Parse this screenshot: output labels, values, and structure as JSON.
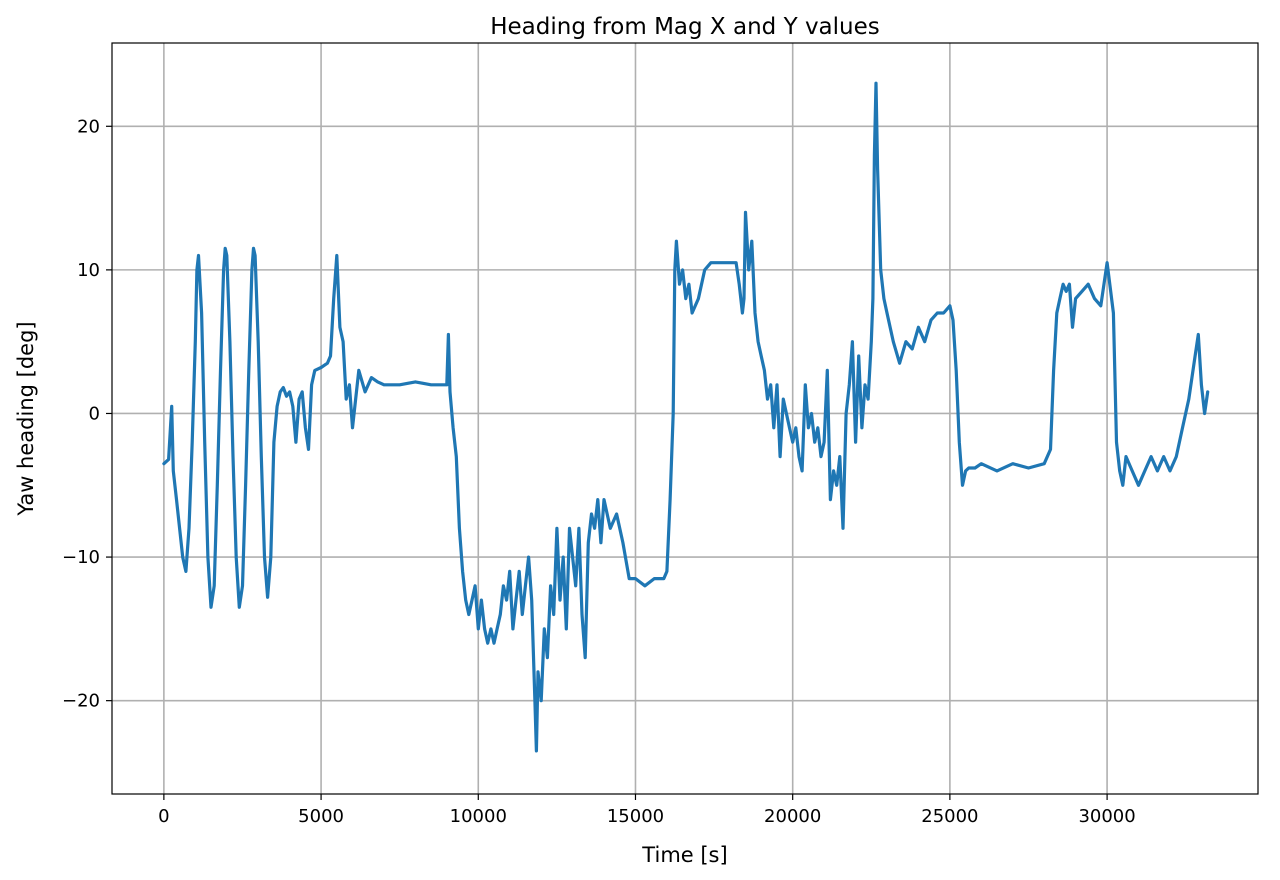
{
  "chart_data": {
    "type": "line",
    "title": "Heading from Mag X and Y values",
    "xlabel": "Time [s]",
    "ylabel": "Yaw heading [deg]",
    "xlim": [
      -1650,
      34800
    ],
    "ylim": [
      -26.5,
      25.8
    ],
    "xticks": [
      0,
      5000,
      10000,
      15000,
      20000,
      25000,
      30000
    ],
    "yticks": [
      -20,
      -10,
      0,
      10,
      20
    ],
    "grid": true,
    "legend": "none",
    "series": [
      {
        "color": "#1f77b4",
        "x": [
          0,
          150,
          250,
          300,
          400,
          500,
          600,
          700,
          800,
          900,
          1000,
          1050,
          1100,
          1200,
          1300,
          1400,
          1500,
          1600,
          1700,
          1800,
          1900,
          1950,
          2000,
          2100,
          2200,
          2300,
          2400,
          2500,
          2600,
          2700,
          2800,
          2850,
          2900,
          3000,
          3100,
          3200,
          3300,
          3400,
          3500,
          3600,
          3700,
          3800,
          3900,
          4000,
          4100,
          4200,
          4300,
          4400,
          4500,
          4600,
          4700,
          4800,
          5000,
          5200,
          5300,
          5400,
          5500,
          5600,
          5700,
          5800,
          5900,
          6000,
          6200,
          6400,
          6600,
          6800,
          7000,
          7500,
          8000,
          8500,
          8800,
          9000,
          9050,
          9100,
          9200,
          9300,
          9400,
          9500,
          9600,
          9700,
          9800,
          9900,
          10000,
          10100,
          10200,
          10300,
          10400,
          10500,
          10600,
          10700,
          10800,
          10900,
          11000,
          11100,
          11200,
          11300,
          11400,
          11500,
          11600,
          11700,
          11800,
          11850,
          11900,
          12000,
          12100,
          12200,
          12300,
          12400,
          12500,
          12600,
          12700,
          12800,
          12900,
          13000,
          13100,
          13200,
          13300,
          13400,
          13500,
          13600,
          13700,
          13800,
          13900,
          14000,
          14200,
          14400,
          14600,
          14800,
          15000,
          15300,
          15600,
          15900,
          16000,
          16100,
          16200,
          16250,
          16300,
          16400,
          16500,
          16600,
          16700,
          16800,
          17000,
          17200,
          17400,
          17600,
          17800,
          18000,
          18200,
          18300,
          18400,
          18450,
          18500,
          18600,
          18700,
          18800,
          18900,
          19000,
          19100,
          19200,
          19300,
          19400,
          19500,
          19600,
          19700,
          19800,
          19900,
          20000,
          20100,
          20200,
          20300,
          20400,
          20500,
          20600,
          20700,
          20800,
          20900,
          21000,
          21100,
          21200,
          21300,
          21400,
          21500,
          21600,
          21700,
          21800,
          21900,
          22000,
          22100,
          22200,
          22300,
          22400,
          22500,
          22550,
          22600,
          22650,
          22700,
          22800,
          22900,
          23000,
          23200,
          23400,
          23600,
          23800,
          24000,
          24200,
          24400,
          24600,
          24800,
          25000,
          25100,
          25200,
          25300,
          25400,
          25500,
          25600,
          25800,
          26000,
          26500,
          27000,
          27500,
          28000,
          28200,
          28300,
          28400,
          28500,
          28600,
          28700,
          28800,
          28900,
          29000,
          29200,
          29400,
          29600,
          29800,
          30000,
          30200,
          30300,
          30400,
          30500,
          30600,
          30800,
          31000,
          31200,
          31400,
          31600,
          31800,
          32000,
          32200,
          32400,
          32600,
          32800,
          32900,
          33000,
          33100,
          33200
        ],
        "y": [
          -3.5,
          -3.2,
          0.5,
          -4,
          -6,
          -8,
          -10,
          -11,
          -8,
          -2,
          5,
          10,
          11,
          7,
          -2,
          -10,
          -13.5,
          -12,
          -5,
          3,
          10,
          11.5,
          11,
          5,
          -3,
          -10,
          -13.5,
          -12,
          -5,
          3,
          10,
          11.5,
          11,
          5,
          -3,
          -10,
          -12.8,
          -10,
          -2,
          0.5,
          1.5,
          1.8,
          1.2,
          1.5,
          0.5,
          -2,
          1,
          1.5,
          -1,
          -2.5,
          2,
          3,
          3.2,
          3.5,
          4,
          8,
          11,
          6,
          5,
          1,
          2,
          -1,
          3,
          1.5,
          2.5,
          2.2,
          2,
          2,
          2.2,
          2,
          2,
          2,
          5.5,
          1.5,
          -1,
          -3,
          -8,
          -11,
          -13,
          -14,
          -13,
          -12,
          -15,
          -13,
          -15,
          -16,
          -15,
          -16,
          -15,
          -14,
          -12,
          -13,
          -11,
          -15,
          -13,
          -11,
          -14,
          -12,
          -10,
          -13,
          -20,
          -23.5,
          -18,
          -20,
          -15,
          -17,
          -12,
          -14,
          -8,
          -13,
          -10,
          -15,
          -8,
          -10,
          -12,
          -8,
          -14,
          -17,
          -9,
          -7,
          -8,
          -6,
          -9,
          -6,
          -8,
          -7,
          -9,
          -11.5,
          -11.5,
          -12,
          -11.5,
          -11.5,
          -11,
          -6,
          0,
          10,
          12,
          9,
          10,
          8,
          9,
          7,
          8,
          10,
          10.5,
          10.5,
          10.5,
          10.5,
          10.5,
          9,
          7,
          8,
          14,
          10,
          12,
          7,
          5,
          4,
          3,
          1,
          2,
          -1,
          2,
          -3,
          1,
          0,
          -1,
          -2,
          -1,
          -3,
          -4,
          2,
          -1,
          0,
          -2,
          -1,
          -3,
          -2,
          3,
          -6,
          -4,
          -5,
          -3,
          -8,
          0,
          2,
          5,
          -2,
          4,
          -1,
          2,
          1,
          5,
          8,
          18,
          23,
          17,
          10,
          8,
          7,
          5,
          3.5,
          5,
          4.5,
          6,
          5,
          6.5,
          7,
          7,
          7.5,
          6.5,
          3,
          -2,
          -5,
          -4,
          -3.8,
          -3.8,
          -3.5,
          -4,
          -3.5,
          -3.8,
          -3.5,
          -2.5,
          3,
          7,
          8,
          9,
          8.5,
          9,
          6,
          8,
          8.5,
          9,
          8,
          7.5,
          10.5,
          7,
          -2,
          -4,
          -5,
          -3,
          -4,
          -5,
          -4,
          -3,
          -4,
          -3,
          -4,
          -3,
          -1,
          1,
          4,
          5.5,
          2,
          0,
          1.5
        ]
      }
    ]
  }
}
